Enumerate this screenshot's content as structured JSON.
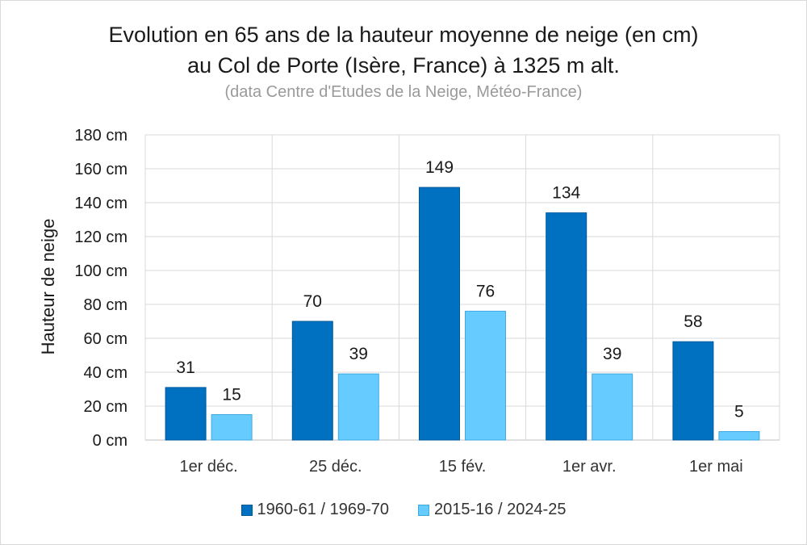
{
  "chart_data": {
    "type": "bar",
    "title_lines": [
      "Evolution en 65 ans de la hauteur moyenne de neige (en cm)",
      "au Col de Porte (Isère, France) à 1325 m alt."
    ],
    "subtitle": "(data Centre d'Etudes de la Neige, Météo-France)",
    "xlabel": "",
    "ylabel": "Hauteur de neige",
    "ylim": [
      0,
      180
    ],
    "yticks": [
      0,
      20,
      40,
      60,
      80,
      100,
      120,
      140,
      160,
      180
    ],
    "ytick_suffix": " cm",
    "categories": [
      "1er déc.",
      "25 déc.",
      "15 fév.",
      "1er avr.",
      "1er mai"
    ],
    "series": [
      {
        "name": "1960-61 / 1969-70",
        "values": [
          31,
          70,
          149,
          134,
          58
        ],
        "color": "#0070c0",
        "edge": "#005a9e"
      },
      {
        "name": "2015-16 / 2024-25",
        "values": [
          15,
          39,
          76,
          39,
          5
        ],
        "color": "#66ccff",
        "edge": "#3fa9e0"
      }
    ],
    "grid": true,
    "legend_position": "bottom"
  }
}
